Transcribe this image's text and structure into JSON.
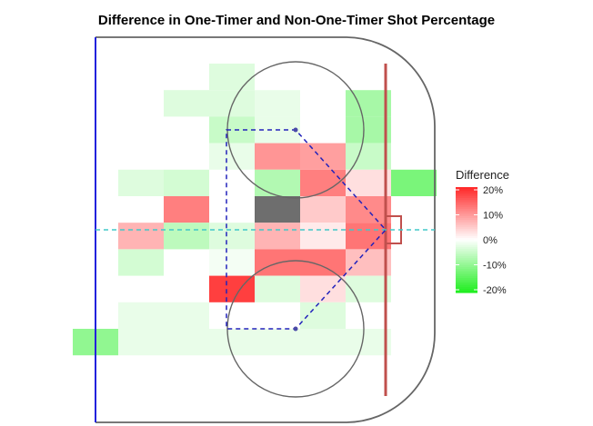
{
  "chart_data": {
    "type": "heatmap",
    "title": "Difference in One-Timer and Non-One-Timer Shot Percentage",
    "legend": {
      "title": "Difference",
      "placement": "right",
      "ticks": [
        "20%",
        "10%",
        "0%",
        "-10%",
        "-20%"
      ],
      "range": [
        -20,
        20
      ],
      "colors": {
        "high": "#ff2a2a",
        "mid": "#ffffff",
        "low": "#22ee22",
        "na": "#6e6e6e"
      }
    },
    "grid": {
      "cols": 8,
      "rows": 13
    },
    "cells": [
      {
        "col": 3,
        "row": 0,
        "value": -3
      },
      {
        "col": 2,
        "row": 1,
        "value": -3
      },
      {
        "col": 3,
        "row": 1,
        "value": -3
      },
      {
        "col": 4,
        "row": 1,
        "value": -2
      },
      {
        "col": 6,
        "row": 1,
        "value": -8
      },
      {
        "col": 3,
        "row": 2,
        "value": -5
      },
      {
        "col": 4,
        "row": 2,
        "value": -2
      },
      {
        "col": 6,
        "row": 2,
        "value": -8
      },
      {
        "col": 3,
        "row": 3,
        "value": -2
      },
      {
        "col": 4,
        "row": 3,
        "value": 10
      },
      {
        "col": 5,
        "row": 3,
        "value": 9
      },
      {
        "col": 6,
        "row": 3,
        "value": -5
      },
      {
        "col": 1,
        "row": 4,
        "value": -3
      },
      {
        "col": 2,
        "row": 4,
        "value": -4
      },
      {
        "col": 4,
        "row": 4,
        "value": -7
      },
      {
        "col": 5,
        "row": 4,
        "value": 12
      },
      {
        "col": 6,
        "row": 4,
        "value": 3
      },
      {
        "col": 7,
        "row": 4,
        "value": -12
      },
      {
        "col": 2,
        "row": 5,
        "value": 12
      },
      {
        "col": 4,
        "row": 5,
        "value": null
      },
      {
        "col": 5,
        "row": 5,
        "value": 5
      },
      {
        "col": 6,
        "row": 5,
        "value": 11
      },
      {
        "col": 1,
        "row": 6,
        "value": 7
      },
      {
        "col": 2,
        "row": 6,
        "value": -6
      },
      {
        "col": 3,
        "row": 6,
        "value": -3
      },
      {
        "col": 4,
        "row": 6,
        "value": 7
      },
      {
        "col": 5,
        "row": 6,
        "value": 2
      },
      {
        "col": 6,
        "row": 6,
        "value": 13
      },
      {
        "col": 1,
        "row": 7,
        "value": -4
      },
      {
        "col": 3,
        "row": 7,
        "value": -1
      },
      {
        "col": 4,
        "row": 7,
        "value": 13
      },
      {
        "col": 5,
        "row": 7,
        "value": 13
      },
      {
        "col": 6,
        "row": 7,
        "value": 6
      },
      {
        "col": 3,
        "row": 8,
        "value": 18
      },
      {
        "col": 4,
        "row": 8,
        "value": -3
      },
      {
        "col": 5,
        "row": 8,
        "value": 3
      },
      {
        "col": 6,
        "row": 8,
        "value": -3
      },
      {
        "col": 1,
        "row": 9,
        "value": -2
      },
      {
        "col": 2,
        "row": 9,
        "value": -2
      },
      {
        "col": 5,
        "row": 9,
        "value": -3
      },
      {
        "col": 0,
        "row": 10,
        "value": -10
      },
      {
        "col": 1,
        "row": 10,
        "value": -2
      },
      {
        "col": 2,
        "row": 10,
        "value": -2
      },
      {
        "col": 3,
        "row": 10,
        "value": -2
      },
      {
        "col": 4,
        "row": 10,
        "value": -2
      },
      {
        "col": 5,
        "row": 10,
        "value": -2
      },
      {
        "col": 6,
        "row": 10,
        "value": -2
      }
    ]
  },
  "rink_colors": {
    "blue_line": "#2222dd",
    "goal_line": "#c0504d",
    "center_dashed": "#40c8c8",
    "slot_dashed": "#2222bb",
    "boards": "#666666",
    "circles": "#666666"
  }
}
